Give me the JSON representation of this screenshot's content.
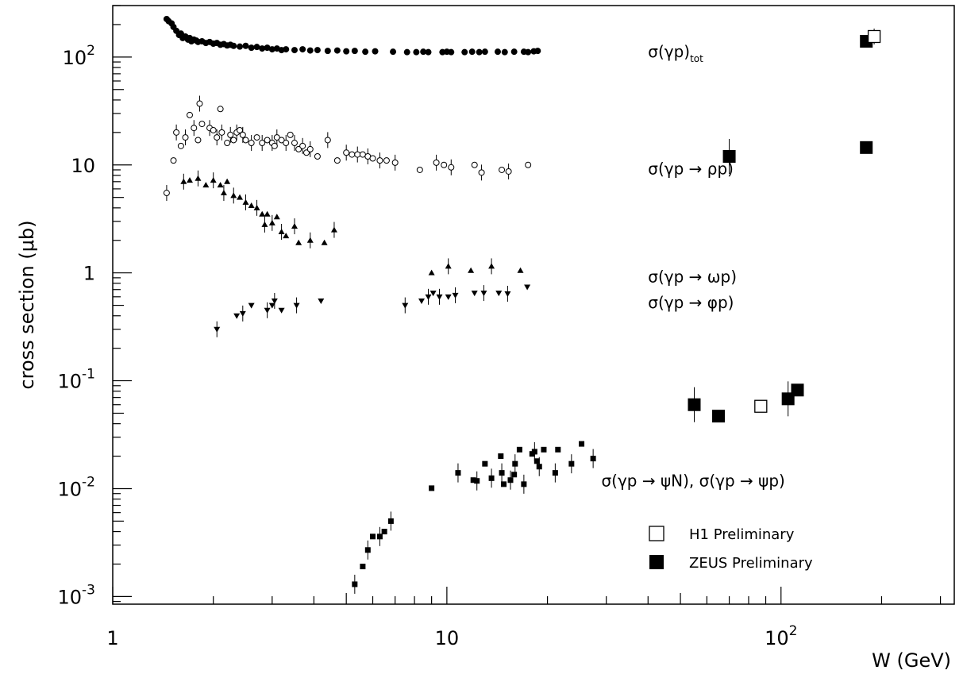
{
  "chart_data": {
    "type": "scatter",
    "title": "",
    "xlabel": "W (GeV)",
    "ylabel": "cross section (μb)",
    "xscale": "log",
    "yscale": "log",
    "xlim": [
      1,
      330
    ],
    "ylim": [
      0.00085,
      300
    ],
    "x_ticks": [
      {
        "value": 1,
        "label": "1"
      },
      {
        "value": 10,
        "label": "10"
      },
      {
        "value": 100,
        "label": "10",
        "sup": "2"
      }
    ],
    "y_ticks": [
      {
        "value": 0.001,
        "label": "10",
        "sup": "-3"
      },
      {
        "value": 0.01,
        "label": "10",
        "sup": "-2"
      },
      {
        "value": 0.1,
        "label": "10",
        "sup": "-1"
      },
      {
        "value": 1,
        "label": "1"
      },
      {
        "value": 10,
        "label": "10"
      },
      {
        "value": 100,
        "label": "10",
        "sup": "2"
      }
    ],
    "grid": false,
    "annotations": [
      {
        "text": "σ(γp)",
        "sub": "tot",
        "x": 40,
        "y": 100
      },
      {
        "text": "σ(γp → ρp)",
        "x": 40,
        "y": 8.2
      },
      {
        "text": "σ(γp → ωp)",
        "x": 40,
        "y": 0.82
      },
      {
        "text": "σ(γp → φp)",
        "x": 40,
        "y": 0.47
      },
      {
        "text": "σ(γp → ψN), σ(γp → ψp)",
        "x": 29,
        "y": 0.0105
      }
    ],
    "legend": {
      "position": "bottom-right",
      "entries": [
        {
          "label": "H1 Preliminary",
          "marker": "open-square"
        },
        {
          "label": "ZEUS Preliminary",
          "marker": "filled-square"
        }
      ]
    },
    "series": [
      {
        "marker": "filled-circle",
        "points": [
          [
            1.45,
            225
          ],
          [
            1.47,
            215
          ],
          [
            1.5,
            205
          ],
          [
            1.52,
            190
          ],
          [
            1.55,
            175
          ],
          [
            1.58,
            160
          ],
          [
            1.6,
            165
          ],
          [
            1.62,
            150
          ],
          [
            1.65,
            155
          ],
          [
            1.68,
            145
          ],
          [
            1.7,
            150
          ],
          [
            1.72,
            140
          ],
          [
            1.75,
            145
          ],
          [
            1.78,
            142
          ],
          [
            1.8,
            138
          ],
          [
            1.85,
            140
          ],
          [
            1.9,
            135
          ],
          [
            1.95,
            138
          ],
          [
            2.0,
            133
          ],
          [
            2.05,
            135
          ],
          [
            2.1,
            130
          ],
          [
            2.15,
            132
          ],
          [
            2.2,
            128
          ],
          [
            2.25,
            130
          ],
          [
            2.3,
            127
          ],
          [
            2.4,
            125
          ],
          [
            2.5,
            127
          ],
          [
            2.6,
            122
          ],
          [
            2.7,
            124
          ],
          [
            2.8,
            120
          ],
          [
            2.9,
            122
          ],
          [
            3.0,
            118
          ],
          [
            3.1,
            120
          ],
          [
            3.2,
            116
          ],
          [
            3.3,
            118
          ],
          [
            3.5,
            116
          ],
          [
            3.7,
            118
          ],
          [
            3.9,
            115
          ],
          [
            4.1,
            116
          ],
          [
            4.4,
            114
          ],
          [
            4.7,
            115
          ],
          [
            5.0,
            113
          ],
          [
            5.3,
            114
          ],
          [
            5.7,
            112
          ],
          [
            6.1,
            113
          ],
          [
            6.9,
            112
          ],
          [
            7.6,
            111
          ],
          [
            8.1,
            111
          ],
          [
            8.5,
            112
          ],
          [
            8.8,
            111
          ],
          [
            9.7,
            111
          ],
          [
            10.0,
            112
          ],
          [
            10.3,
            111
          ],
          [
            11.3,
            111
          ],
          [
            11.9,
            112
          ],
          [
            12.5,
            111
          ],
          [
            13.0,
            112
          ],
          [
            14.2,
            112
          ],
          [
            14.9,
            111
          ],
          [
            15.9,
            112
          ],
          [
            17.0,
            112
          ],
          [
            17.5,
            111
          ],
          [
            18.2,
            113
          ],
          [
            18.7,
            114
          ]
        ]
      },
      {
        "marker": "open-circle",
        "points": [
          [
            1.45,
            5.5
          ],
          [
            1.52,
            11
          ],
          [
            1.55,
            20
          ],
          [
            1.6,
            15
          ],
          [
            1.65,
            18
          ],
          [
            1.7,
            29
          ],
          [
            1.75,
            22
          ],
          [
            1.8,
            17
          ],
          [
            1.82,
            37
          ],
          [
            1.85,
            24
          ],
          [
            1.95,
            22
          ],
          [
            2.0,
            21
          ],
          [
            2.05,
            18
          ],
          [
            2.1,
            33
          ],
          [
            2.12,
            20
          ],
          [
            2.2,
            16
          ],
          [
            2.25,
            19
          ],
          [
            2.3,
            17
          ],
          [
            2.35,
            20
          ],
          [
            2.4,
            21
          ],
          [
            2.45,
            19
          ],
          [
            2.5,
            17
          ],
          [
            2.6,
            16
          ],
          [
            2.7,
            18
          ],
          [
            2.8,
            16
          ],
          [
            2.9,
            17
          ],
          [
            3.0,
            16
          ],
          [
            3.05,
            15
          ],
          [
            3.1,
            18
          ],
          [
            3.2,
            17
          ],
          [
            3.3,
            16
          ],
          [
            3.4,
            19
          ],
          [
            3.5,
            16
          ],
          [
            3.6,
            14
          ],
          [
            3.7,
            15
          ],
          [
            3.8,
            13
          ],
          [
            3.9,
            14
          ],
          [
            4.1,
            12
          ],
          [
            4.4,
            17
          ],
          [
            4.7,
            11
          ],
          [
            5.0,
            13
          ],
          [
            5.2,
            12.5
          ],
          [
            5.4,
            12.5
          ],
          [
            5.6,
            12.5
          ],
          [
            5.8,
            12
          ],
          [
            6.0,
            11.5
          ],
          [
            6.3,
            11
          ],
          [
            6.6,
            11
          ],
          [
            7.0,
            10.5
          ],
          [
            8.3,
            9
          ],
          [
            9.3,
            10.5
          ],
          [
            9.8,
            10
          ],
          [
            10.3,
            9.5
          ],
          [
            12.1,
            10
          ],
          [
            12.7,
            8.5
          ],
          [
            14.6,
            9
          ],
          [
            15.3,
            8.7
          ],
          [
            17.5,
            10
          ]
        ]
      },
      {
        "marker": "filled-triangle-up",
        "points": [
          [
            1.63,
            7
          ],
          [
            1.7,
            7.2
          ],
          [
            1.8,
            7.5
          ],
          [
            1.9,
            6.5
          ],
          [
            2.0,
            7.2
          ],
          [
            2.1,
            6.5
          ],
          [
            2.15,
            5.5
          ],
          [
            2.2,
            7
          ],
          [
            2.3,
            5.2
          ],
          [
            2.4,
            5
          ],
          [
            2.5,
            4.5
          ],
          [
            2.6,
            4.2
          ],
          [
            2.7,
            4
          ],
          [
            2.8,
            3.5
          ],
          [
            2.85,
            2.8
          ],
          [
            2.9,
            3.5
          ],
          [
            3.0,
            2.9
          ],
          [
            3.1,
            3.3
          ],
          [
            3.2,
            2.4
          ],
          [
            3.3,
            2.2
          ],
          [
            3.5,
            2.7
          ],
          [
            3.6,
            1.9
          ],
          [
            3.9,
            2
          ],
          [
            4.3,
            1.9
          ],
          [
            4.6,
            2.5
          ],
          [
            9.0,
            1
          ],
          [
            10.1,
            1.15
          ],
          [
            11.8,
            1.05
          ],
          [
            13.6,
            1.15
          ],
          [
            16.6,
            1.05
          ]
        ]
      },
      {
        "marker": "filled-triangle-down",
        "points": [
          [
            2.05,
            0.3
          ],
          [
            2.35,
            0.4
          ],
          [
            2.45,
            0.42
          ],
          [
            2.6,
            0.5
          ],
          [
            2.9,
            0.45
          ],
          [
            3.0,
            0.5
          ],
          [
            3.05,
            0.55
          ],
          [
            3.2,
            0.45
          ],
          [
            3.55,
            0.5
          ],
          [
            4.2,
            0.55
          ],
          [
            7.5,
            0.5
          ],
          [
            8.4,
            0.55
          ],
          [
            8.8,
            0.6
          ],
          [
            9.1,
            0.65
          ],
          [
            9.5,
            0.6
          ],
          [
            10.1,
            0.6
          ],
          [
            10.6,
            0.62
          ],
          [
            12.1,
            0.65
          ],
          [
            12.9,
            0.65
          ],
          [
            14.3,
            0.65
          ],
          [
            15.2,
            0.64
          ],
          [
            17.4,
            0.74
          ]
        ]
      },
      {
        "marker": "filled-small-square",
        "points": [
          [
            5.3,
            0.0013
          ],
          [
            5.6,
            0.0019
          ],
          [
            5.8,
            0.0027
          ],
          [
            6.0,
            0.0036
          ],
          [
            6.3,
            0.0036
          ],
          [
            6.5,
            0.004
          ],
          [
            6.8,
            0.005
          ],
          [
            9.0,
            0.0101
          ],
          [
            10.8,
            0.014
          ],
          [
            12.0,
            0.012
          ],
          [
            12.3,
            0.0118
          ],
          [
            13.0,
            0.017
          ],
          [
            13.6,
            0.0125
          ],
          [
            14.5,
            0.02
          ],
          [
            14.6,
            0.014
          ],
          [
            14.8,
            0.011
          ],
          [
            15.5,
            0.012
          ],
          [
            15.9,
            0.0135
          ],
          [
            16.0,
            0.017
          ],
          [
            16.5,
            0.023
          ],
          [
            17.0,
            0.011
          ],
          [
            18.0,
            0.021
          ],
          [
            18.3,
            0.022
          ],
          [
            18.6,
            0.018
          ],
          [
            18.9,
            0.016
          ],
          [
            19.5,
            0.023
          ],
          [
            21.1,
            0.014
          ],
          [
            21.5,
            0.023
          ],
          [
            23.6,
            0.017
          ],
          [
            25.3,
            0.026
          ],
          [
            27.4,
            0.019
          ]
        ]
      },
      {
        "marker": "big-filled-square",
        "label": "ZEUS Preliminary",
        "points": [
          [
            180,
            140
          ],
          [
            70,
            12
          ],
          [
            180,
            14.5
          ],
          [
            55,
            0.06
          ],
          [
            65,
            0.047
          ],
          [
            105,
            0.068
          ],
          [
            112,
            0.082
          ]
        ]
      },
      {
        "marker": "big-open-square",
        "label": "H1 Preliminary",
        "points": [
          [
            190,
            155
          ],
          [
            87,
            0.058
          ]
        ]
      }
    ]
  }
}
